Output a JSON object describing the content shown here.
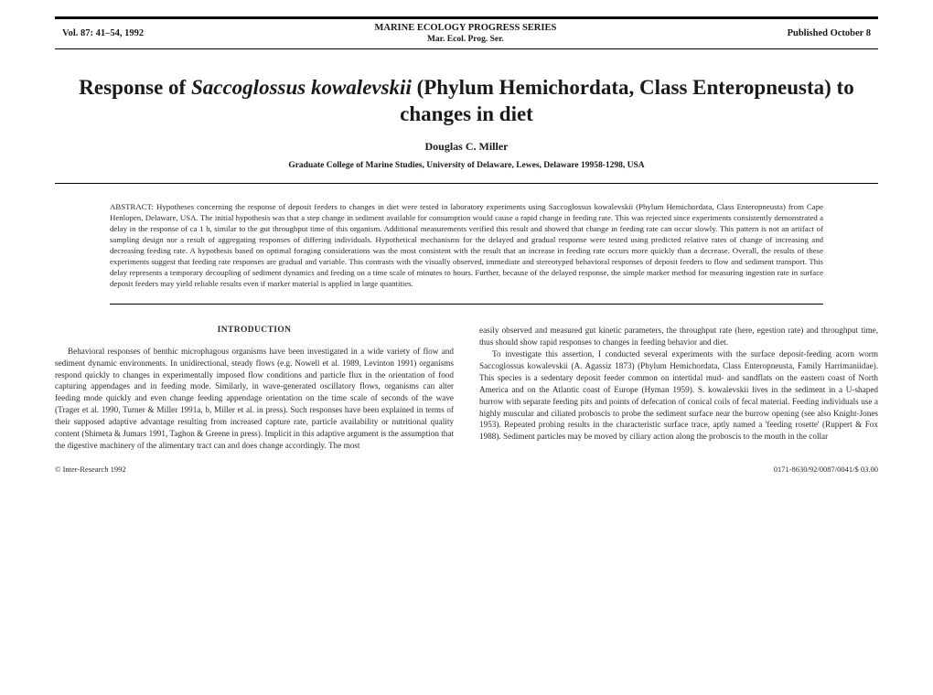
{
  "header": {
    "left": "Vol. 87: 41–54, 1992",
    "center_top": "MARINE  ECOLOGY  PROGRESS  SERIES",
    "center_sub": "Mar. Ecol. Prog. Ser.",
    "right": "Published October 8"
  },
  "title_pre": "Response of ",
  "title_species": "Saccoglossus kowalevskii",
  "title_post": " (Phylum Hemichordata, Class Enteropneusta) to changes in diet",
  "author": "Douglas C. Miller",
  "affiliation": "Graduate College of Marine Studies, University of Delaware, Lewes, Delaware 19958-1298, USA",
  "abstract_label": "ABSTRACT: ",
  "abstract_body": "Hypotheses concerning the response of deposit feeders to changes in diet were tested in laboratory experiments using Saccoglossus kowalevskii (Phylum Hemichordata, Class Enteropneusta) from Cape Henlopen, Delaware, USA. The initial hypothesis was that a step change in sediment available for consumption would cause a rapid change in feeding rate. This was rejected since experiments consistently demonstrated a delay in the response of ca 1 h, similar to the gut throughput time of this organism. Additional measurements verified this result and showed that change in feeding rate can occur slowly. This pattern is not an artifact of sampling design nor a result of aggregating responses of differing individuals. Hypothetical mechanisms for the delayed and gradual response were tested using predicted relative rates of change of increasing and decreasing feeding rate. A hypothesis based on optimal foraging considerations was the most consistent with the result that an increase in feeding rate occurs more quickly than a decrease. Overall, the results of these experiments suggest that feeding rate responses are gradual and variable. This contrasts with the visually observed, immediate and stereotyped behavioral responses of deposit feeders to flow and sediment transport. This delay represents a temporary decoupling of sediment dynamics and feeding on a time scale of minutes to hours. Further, because of the delayed response, the simple marker method for measuring ingestion rate in surface deposit feeders may yield reliable results even if marker material is applied in large quantities.",
  "intro_head": "INTRODUCTION",
  "intro_p1": "Behavioral responses of benthic microphagous organisms have been investigated in a wide variety of flow and sediment dynamic environments. In unidirectional, steady flows (e.g. Nowell et al. 1989, Levinton 1991) organisms respond quickly to changes in experimentally imposed flow conditions and particle flux in the orientation of food capturing appendages and in feeding mode. Similarly, in wave-generated oscillatory flows, organisms can alter feeding mode quickly and even change feeding appendage orientation on the time scale of seconds of the wave (Trager et al. 1990, Turner & Miller 1991a, b, Miller et al. in press). Such responses have been explained in terms of their supposed adaptive advantage resulting from increased capture rate, particle availability or nutritional quality content (Shimeta & Jumars 1991, Taghon & Greene in press). Implicit in this adaptive argument is the assumption that the digestive machinery of the alimentary tract can and does change accordingly. The most",
  "intro_p2a": "easily observed and measured gut kinetic parameters, the throughput rate (here, egestion rate) and throughput time, thus should show rapid responses to changes in feeding behavior and diet.",
  "intro_p2b": "To investigate this assertion, I conducted several experiments with the surface deposit-feeding acorn worm Saccoglossus kowalevskii (A. Agassiz 1873) (Phylum Hemichordata, Class Enteropneusta, Family Harrimaniidae). This species is a sedentary deposit feeder common on intertidal mud- and sandflats on the eastern coast of North America and on the Atlantic coast of Europe (Hyman 1959). S. kowalevskii lives in the sediment in a U-shaped burrow with separate feeding pits and points of defecation of conical coils of fecal material. Feeding individuals use a highly muscular and ciliated proboscis to probe the sediment surface near the burrow opening (see also Knight-Jones 1953). Repeated probing results in the characteristic surface trace, aptly named a 'feeding rosette' (Ruppert & Fox 1988). Sediment particles may be moved by ciliary action along the proboscis to the mouth in the collar",
  "footer_left": "© Inter-Research 1992",
  "footer_right": "0171-8630/92/0087/0041/$ 03.00"
}
